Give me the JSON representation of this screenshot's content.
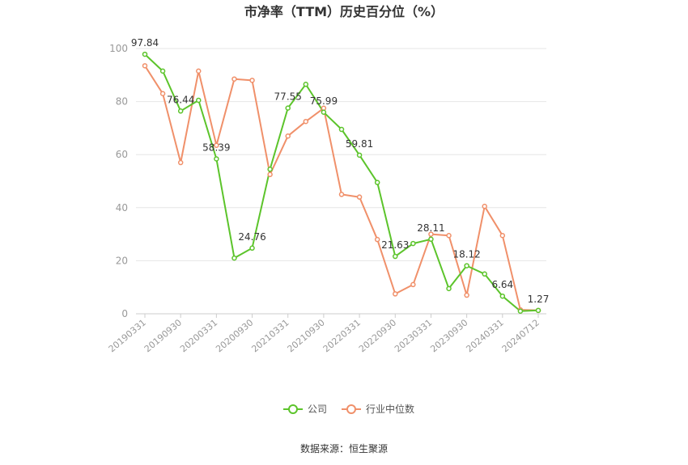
{
  "chart_data": {
    "type": "line",
    "title": "市净率（TTM）历史百分位（%）",
    "xlabel": "",
    "ylabel": "",
    "ylim": [
      0,
      100
    ],
    "yticks": [
      0,
      20,
      40,
      60,
      80,
      100
    ],
    "grid": true,
    "legend_position": "bottom",
    "x": [
      "20190331",
      "20190630",
      "20190930",
      "20191231",
      "20200331",
      "20200630",
      "20200930",
      "20201231",
      "20210331",
      "20210630",
      "20210930",
      "20211231",
      "20220331",
      "20220630",
      "20220930",
      "20221231",
      "20230331",
      "20230630",
      "20230930",
      "20231231",
      "20240331",
      "20240630",
      "20240712"
    ],
    "xtick_labels": [
      "20190331",
      "20190930",
      "20200331",
      "20200930",
      "20210331",
      "20210930",
      "20220331",
      "20220930",
      "20230331",
      "20230930",
      "20240331",
      "20240712"
    ],
    "series": [
      {
        "name": "公司",
        "color": "#5cc42b",
        "values": [
          97.84,
          91.5,
          76.44,
          80.5,
          58.39,
          21.0,
          24.76,
          54.5,
          77.55,
          86.5,
          75.99,
          69.5,
          59.81,
          49.5,
          21.63,
          26.5,
          28.11,
          9.5,
          18.12,
          15.0,
          6.64,
          1.0,
          1.27
        ]
      },
      {
        "name": "行业中位数",
        "color": "#f0906a",
        "values": [
          93.5,
          83.0,
          57.0,
          91.5,
          63.5,
          88.5,
          88.0,
          52.5,
          67.0,
          72.5,
          77.5,
          45.0,
          44.0,
          28.0,
          7.5,
          11.0,
          30.0,
          29.5,
          7.0,
          40.5,
          29.5,
          1.5,
          1.27
        ]
      }
    ],
    "data_labels": [
      {
        "index": 0,
        "text": "97.84"
      },
      {
        "index": 2,
        "text": "76.44"
      },
      {
        "index": 4,
        "text": "58.39"
      },
      {
        "index": 6,
        "text": "24.76"
      },
      {
        "index": 8,
        "text": "77.55"
      },
      {
        "index": 10,
        "text": "75.99"
      },
      {
        "index": 12,
        "text": "59.81"
      },
      {
        "index": 14,
        "text": "21.63"
      },
      {
        "index": 16,
        "text": "28.11"
      },
      {
        "index": 18,
        "text": "18.12"
      },
      {
        "index": 20,
        "text": "6.64"
      },
      {
        "index": 22,
        "text": "1.27"
      }
    ]
  },
  "source": "数据来源：恒生聚源"
}
